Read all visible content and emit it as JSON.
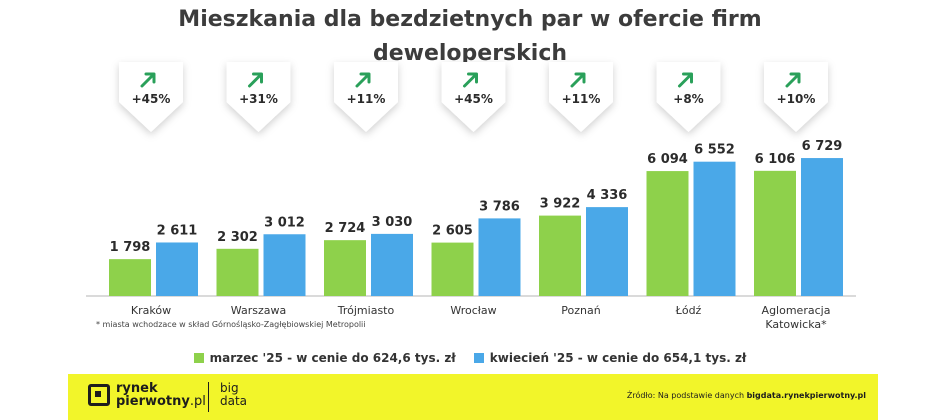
{
  "title_line1": "Mieszkania dla bezdzietnych par w ofercie firm",
  "title_line2": "deweloperskich",
  "chart_data": {
    "type": "bar",
    "categories": [
      "Kraków",
      "Warszawa",
      "Trójmiasto",
      "Wrocław",
      "Poznań",
      "Łódź",
      "Aglomeracja\nKatowicka*"
    ],
    "series": [
      {
        "name": "marzec '25 - w cenie do 624,6 tys. zł",
        "values": [
          1798,
          2302,
          2724,
          2605,
          3922,
          6094,
          6106
        ],
        "labels": [
          "1 798",
          "2 302",
          "2 724",
          "2 605",
          "3 922",
          "6 094",
          "6 106"
        ],
        "color": "#8ed14b"
      },
      {
        "name": "kwiecień '25 - w cenie do 654,1 tys. zł",
        "values": [
          2611,
          3012,
          3030,
          3786,
          4336,
          6552,
          6729
        ],
        "labels": [
          "2 611",
          "3 012",
          "3 030",
          "3 786",
          "4 336",
          "6 552",
          "6 729"
        ],
        "color": "#4aa8e8"
      }
    ],
    "changes": [
      "+45%",
      "+31%",
      "+11%",
      "+45%",
      "+11%",
      "+8%",
      "+10%"
    ],
    "ylim": [
      0,
      7000
    ],
    "grid": false,
    "legend_position": "bottom"
  },
  "footnote": "* miasta wchodzace w skład Górnośląsko-Zagłębiowskiej Metropolii",
  "footer": {
    "logo_line1": "rynek",
    "logo_line2_bold": "pierwotny",
    "logo_line2_light": ".pl",
    "bigdata_line1": "big",
    "bigdata_line2": "data",
    "source_prefix": "Źródło: Na podstawie danych ",
    "source_bold": "bigdata.rynekpierwotny.pl"
  },
  "colors": {
    "arrow": "#2aa05a",
    "axis": "#b5b5b5",
    "text": "#333333"
  }
}
